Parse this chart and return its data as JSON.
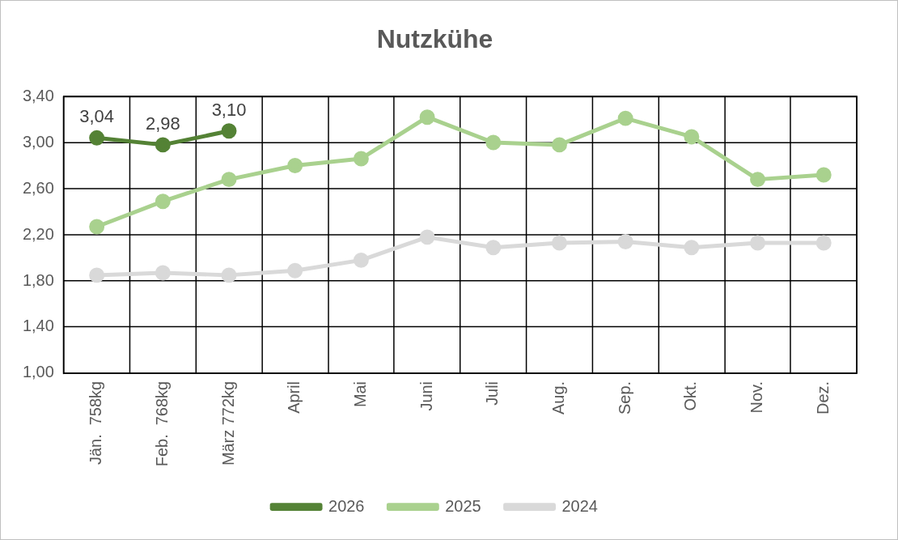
{
  "chart_data": {
    "type": "line",
    "title": "Nutzkühe",
    "categories": [
      "Jän.  758kg",
      "Feb.  768kg",
      "März 772kg",
      "April",
      "Mai",
      "Juni",
      "Juli",
      "Aug.",
      "Sep.",
      "Okt.",
      "Nov.",
      "Dez."
    ],
    "series": [
      {
        "name": "2026",
        "color": "#548235",
        "values": [
          3.04,
          2.98,
          3.1,
          null,
          null,
          null,
          null,
          null,
          null,
          null,
          null,
          null
        ],
        "value_labels": [
          "3,04",
          "2,98",
          "3,10",
          null,
          null,
          null,
          null,
          null,
          null,
          null,
          null,
          null
        ]
      },
      {
        "name": "2025",
        "color": "#a9d18e",
        "values": [
          2.27,
          2.49,
          2.68,
          2.8,
          2.86,
          3.22,
          3.0,
          2.98,
          3.21,
          3.05,
          2.68,
          2.72
        ]
      },
      {
        "name": "2024",
        "color": "#d9d9d9",
        "values": [
          1.85,
          1.87,
          1.85,
          1.89,
          1.98,
          2.18,
          2.09,
          2.13,
          2.14,
          2.09,
          2.13,
          2.13
        ]
      }
    ],
    "ylim": [
      1.0,
      3.4
    ],
    "yticks": [
      {
        "value": 1.0,
        "label": "1,00"
      },
      {
        "value": 1.4,
        "label": "1,40"
      },
      {
        "value": 1.8,
        "label": "1,80"
      },
      {
        "value": 2.2,
        "label": "2,20"
      },
      {
        "value": 2.6,
        "label": "2,60"
      },
      {
        "value": 3.0,
        "label": "3,00"
      },
      {
        "value": 3.4,
        "label": "3,40"
      }
    ],
    "grid": true,
    "legend": "bottom",
    "marker": "circle",
    "line_style": "solid"
  }
}
